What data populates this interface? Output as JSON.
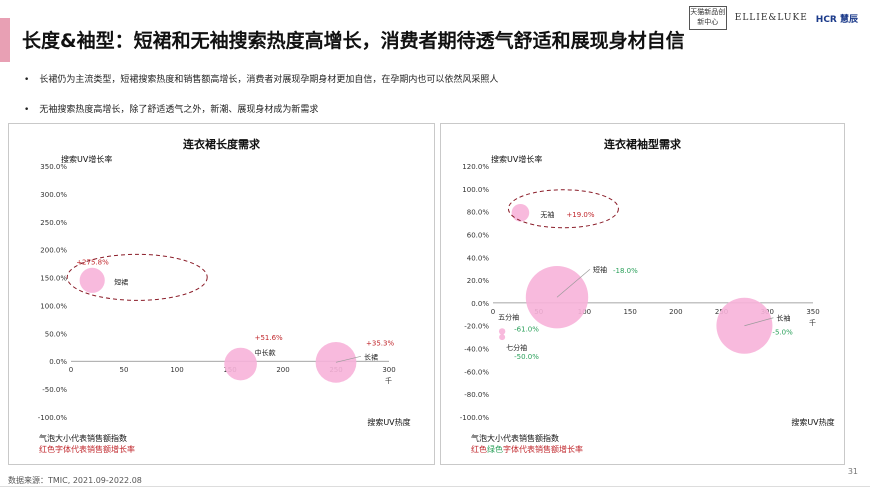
{
  "header": {
    "title": "长度&袖型：短裙和无袖搜索热度高增长，消费者期待透气舒适和展现身材自信",
    "logo_tmic": "天猫新品创新中心",
    "logo_elle": "ELLIE&LUKE",
    "logo_hcr": "HCR 慧辰"
  },
  "bullets": [
    "长裙仍为主流类型，短裙搜索热度和销售额高增长，消费者对展现孕期身材更加自信，在孕期内也可以依然风采照人",
    "无袖搜索热度高增长，除了舒适透气之外，新潮、展现身材成为新需求"
  ],
  "footer": {
    "source": "数据来源：TMIC, 2021.09-2022.08",
    "page": "31"
  },
  "colors": {
    "bubble": "#f7b3d9",
    "red": "#c0262b",
    "green": "#2aa05a",
    "ellipse": "#8a1c28"
  },
  "chart_data": [
    {
      "type": "scatter",
      "title": "连衣裙长度需求",
      "xlabel": "搜索UV热度",
      "ylabel": "搜索UV增长率",
      "x_unit": "千",
      "xlim": [
        0,
        300
      ],
      "xticks": [
        0,
        50,
        100,
        150,
        200,
        250,
        300
      ],
      "ylim": [
        -100,
        350
      ],
      "yticks": [
        -100,
        -50,
        0,
        50,
        100,
        150,
        200,
        250,
        300,
        350
      ],
      "legend_size": "气泡大小代表销售额指数",
      "legend_color": "红色字体代表销售额增长率",
      "highlighted": "短裙",
      "points": [
        {
          "name": "短裙",
          "x": 20,
          "y": 145,
          "size": 0.37,
          "growth": "+275.8%",
          "growth_color": "red"
        },
        {
          "name": "中长款",
          "x": 160,
          "y": -5,
          "size": 0.48,
          "growth": "+51.6%",
          "growth_color": "red"
        },
        {
          "name": "长裙",
          "x": 250,
          "y": -2,
          "size": 0.6,
          "growth": "+35.3%",
          "growth_color": "red"
        }
      ]
    },
    {
      "type": "scatter",
      "title": "连衣裙袖型需求",
      "xlabel": "搜索UV热度",
      "ylabel": "搜索UV增长率",
      "x_unit": "千",
      "xlim": [
        0,
        350
      ],
      "xticks": [
        0,
        50,
        100,
        150,
        200,
        250,
        300,
        350
      ],
      "ylim": [
        -100,
        120
      ],
      "yticks": [
        -100,
        -80,
        -60,
        -40,
        -20,
        0,
        20,
        40,
        60,
        80,
        100,
        120
      ],
      "legend_size": "气泡大小代表销售额指数",
      "legend_color_red": "红色",
      "legend_color_green": "绿色",
      "legend_color_rest": "字体代表销售额增长率",
      "highlighted": "无袖",
      "points": [
        {
          "name": "无袖",
          "x": 30,
          "y": 79,
          "size": 0.22,
          "growth": "+19.0%",
          "growth_color": "red"
        },
        {
          "name": "短袖",
          "x": 70,
          "y": 5,
          "size": 0.78,
          "growth": "-18.0%",
          "growth_color": "green"
        },
        {
          "name": "长袖",
          "x": 275,
          "y": -20,
          "size": 0.7,
          "growth": "-5.0%",
          "growth_color": "green"
        },
        {
          "name": "五分袖",
          "x": 10,
          "y": -25,
          "size": 0.08,
          "growth": "-61.0%",
          "growth_color": "green"
        },
        {
          "name": "七分袖",
          "x": 10,
          "y": -30,
          "size": 0.04,
          "growth": "-50.0%",
          "growth_color": "green"
        }
      ]
    }
  ]
}
